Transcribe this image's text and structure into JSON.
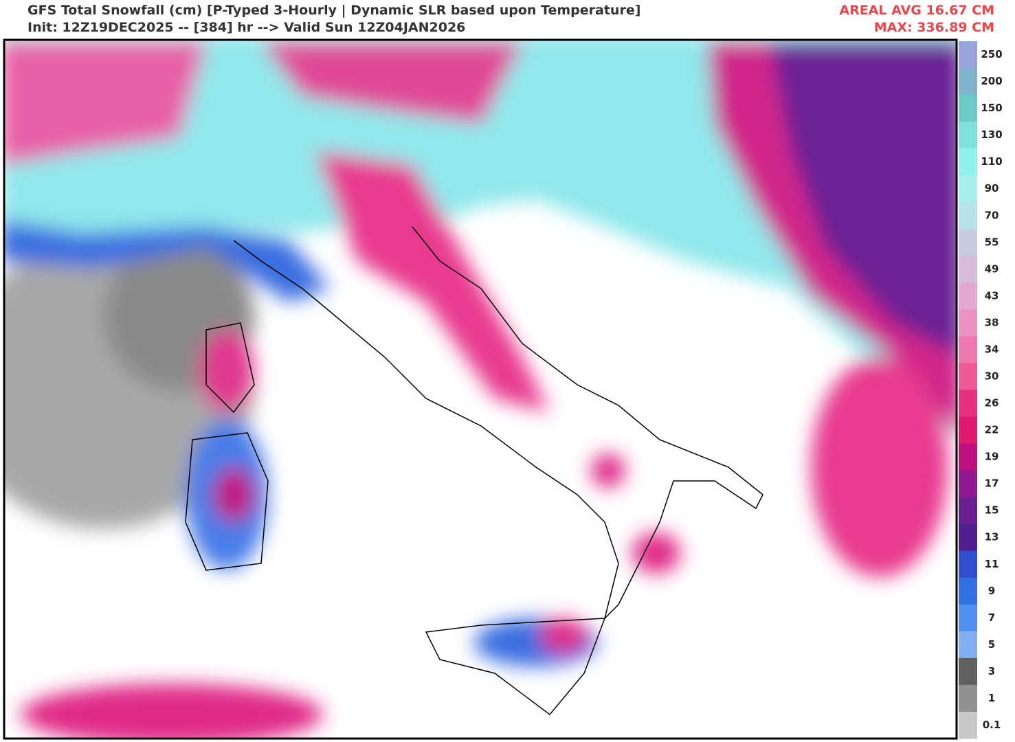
{
  "header": {
    "title": "GFS Total Snowfall (cm) [P-Typed 3-Hourly | Dynamic SLR based upon Temperature]",
    "subtitle": "Init: 12Z19DEC2025 -- [384] hr --> Valid Sun 12Z04JAN2026",
    "areal_avg": "AREAL AVG 16.67 CM",
    "max": "MAX: 336.89 CM"
  },
  "colorbar": {
    "labels": [
      250,
      200,
      150,
      130,
      110,
      90,
      70,
      55,
      49,
      43,
      38,
      34,
      30,
      26,
      22,
      19,
      17,
      15,
      13,
      11,
      9,
      7,
      5,
      3,
      1,
      0.1
    ],
    "colors": [
      "#9aa4dc",
      "#80b4cc",
      "#6ccac8",
      "#80e0e0",
      "#90f0f0",
      "#a8f0f0",
      "#b8e2ea",
      "#c8cce2",
      "#d8bada",
      "#e2a8d2",
      "#ea92c2",
      "#f078b0",
      "#f05898",
      "#e83080",
      "#e01870",
      "#c01080",
      "#901890",
      "#6a2090",
      "#502090",
      "#3050d0",
      "#3070e0",
      "#5090f0",
      "#80b0f0",
      "#606060",
      "#909090",
      "#c8c8c8"
    ]
  }
}
